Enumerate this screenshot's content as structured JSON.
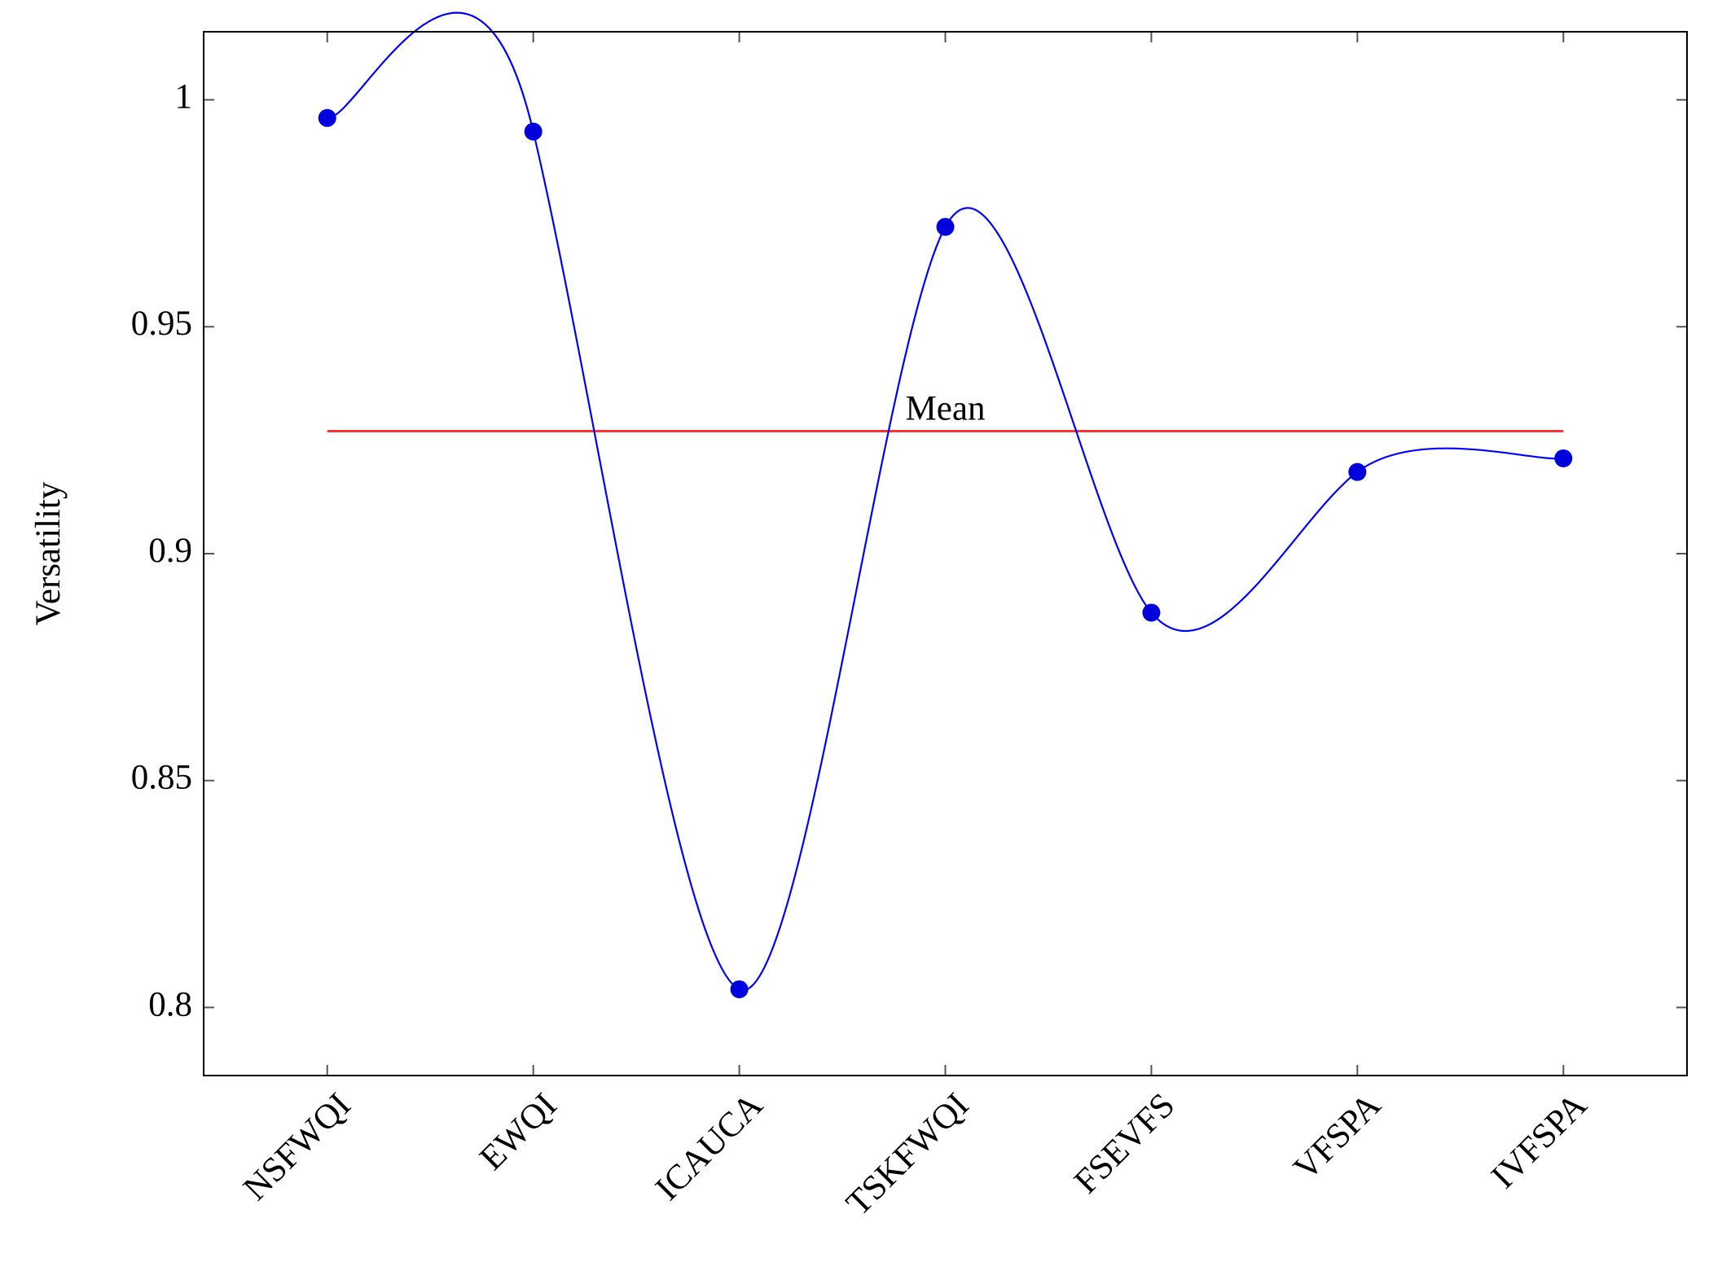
{
  "chart_data": {
    "type": "line",
    "ylabel": "Versatility",
    "categories": [
      "NSFWQI",
      "EWQI",
      "ICAUCA",
      "TSKFWQI",
      "FSEVFS",
      "VFSPA",
      "IVFSPA"
    ],
    "series": [
      {
        "name": "Versatility",
        "color": "#0000ff",
        "marker_color": "#0000dd",
        "values": [
          0.996,
          0.993,
          0.804,
          0.972,
          0.887,
          0.918,
          0.921
        ]
      }
    ],
    "mean": {
      "label": "Mean",
      "value": 0.927,
      "color": "#ff0000"
    },
    "ylim": [
      0.785,
      1.015
    ],
    "yticks": [
      0.8,
      0.85,
      0.9,
      0.95,
      1
    ],
    "smooth": true
  }
}
